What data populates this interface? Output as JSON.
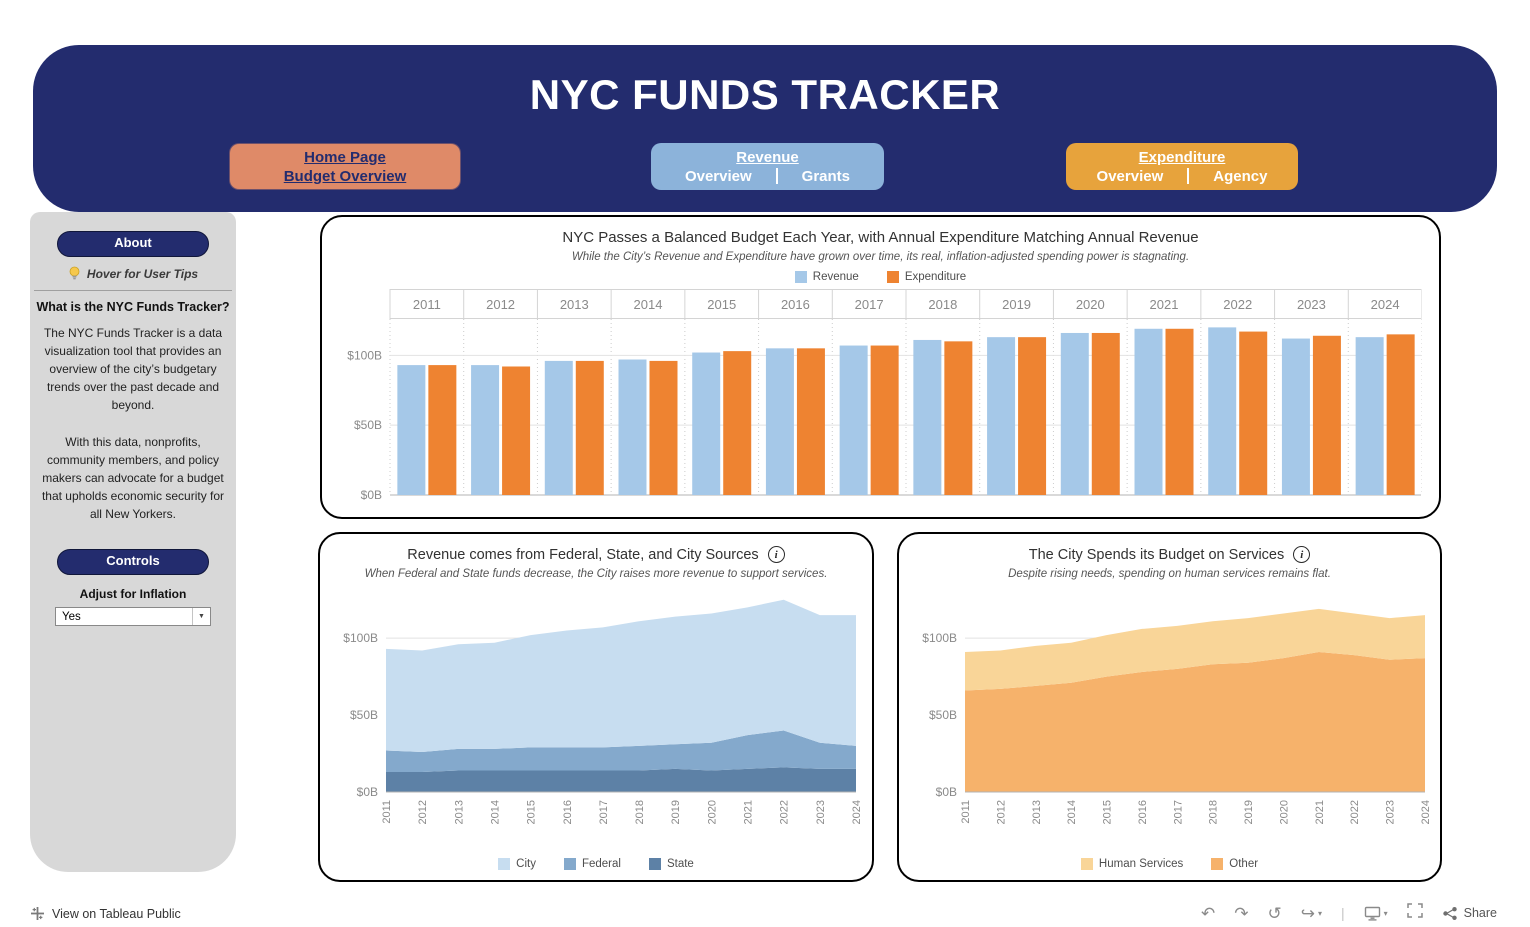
{
  "icons": {
    "info": "i",
    "caret_down": "▼",
    "caret_small": "▾",
    "undo": "↶",
    "redo": "↷",
    "reset": "↺",
    "share_arrow": "↪",
    "separator": "|"
  },
  "header": {
    "title": "NYC FUNDS TRACKER",
    "nav_home": {
      "title": "Home Page",
      "subtitle": "Budget Overview"
    },
    "nav_revenue": {
      "title": "Revenue",
      "left": "Overview",
      "right": "Grants"
    },
    "nav_expenditure": {
      "title": "Expenditure",
      "left": "Overview",
      "right": "Agency"
    }
  },
  "sidebar": {
    "about_label": "About",
    "tips_label": "Hover for User Tips",
    "heading": "What is the NYC Funds Tracker?",
    "para1": "The NYC Funds Tracker is a data visualization tool that provides an overview of the city’s budgetary trends over the past decade and beyond.",
    "para2": "With this data, nonprofits, community members, and policy makers can advocate for a budget that upholds economic security for all New Yorkers.",
    "controls_label": "Controls",
    "inflation_label": "Adjust for Inflation",
    "inflation_value": "Yes"
  },
  "footer": {
    "view_label": "View on Tableau Public",
    "share_label": "Share"
  },
  "colors": {
    "navy": "#232c6e",
    "home_button": "#df8a68",
    "revenue_button": "#8cb3da",
    "expenditure_button": "#e7a33c",
    "sidebar_bg": "#d8d8d8"
  },
  "chart_data": [
    {
      "type": "bar",
      "title": "NYC Passes a Balanced Budget Each Year, with Annual Expenditure Matching Annual Revenue",
      "subtitle": "While the City’s Revenue and Expenditure have grown over time, its real, inflation-adjusted spending power is stagnating.",
      "categories": [
        "2011",
        "2012",
        "2013",
        "2014",
        "2015",
        "2016",
        "2017",
        "2018",
        "2019",
        "2020",
        "2021",
        "2022",
        "2023",
        "2024"
      ],
      "series": [
        {
          "name": "Revenue",
          "color": "#a5c8e8",
          "values": [
            93,
            93,
            96,
            97,
            102,
            105,
            107,
            111,
            113,
            116,
            119,
            120,
            112,
            113
          ]
        },
        {
          "name": "Expenditure",
          "color": "#ee8331",
          "values": [
            93,
            92,
            96,
            96,
            103,
            105,
            107,
            110,
            113,
            116,
            119,
            117,
            114,
            115
          ]
        }
      ],
      "units": "billions USD",
      "yticks": [
        0,
        50,
        100
      ],
      "ylim": [
        0,
        126
      ],
      "grid": true,
      "legend_position": "top"
    },
    {
      "type": "area",
      "title": "Revenue comes from Federal, State, and City Sources",
      "subtitle": "When Federal and State funds decrease, the City raises more revenue to support services.",
      "x": [
        "2011",
        "2012",
        "2013",
        "2014",
        "2015",
        "2016",
        "2017",
        "2018",
        "2019",
        "2020",
        "2021",
        "2022",
        "2023",
        "2024"
      ],
      "series": [
        {
          "name": "State",
          "color": "#5d81a6",
          "values": [
            13,
            13,
            14,
            14,
            14,
            14,
            14,
            14,
            15,
            14,
            15,
            16,
            15,
            15
          ]
        },
        {
          "name": "Federal",
          "color": "#84a9cc",
          "values": [
            14,
            13,
            14,
            14,
            15,
            15,
            15,
            16,
            16,
            18,
            22,
            24,
            17,
            15
          ]
        },
        {
          "name": "City",
          "color": "#c7ddf0",
          "values": [
            66,
            66,
            68,
            69,
            73,
            76,
            78,
            81,
            83,
            84,
            83,
            85,
            83,
            85
          ]
        }
      ],
      "stack_order": "bottom-to-top",
      "legend": [
        "City",
        "Federal",
        "State"
      ],
      "units": "billions USD",
      "yticks": [
        0,
        50,
        100
      ],
      "ylim": [
        0,
        130
      ],
      "legend_position": "bottom"
    },
    {
      "type": "area",
      "title": "The City Spends its Budget on Services",
      "subtitle": "Despite rising needs, spending on human services remains flat.",
      "x": [
        "2011",
        "2012",
        "2013",
        "2014",
        "2015",
        "2016",
        "2017",
        "2018",
        "2019",
        "2020",
        "2021",
        "2022",
        "2023",
        "2024"
      ],
      "series": [
        {
          "name": "Other",
          "color": "#f6b26b",
          "values": [
            66,
            67,
            69,
            71,
            75,
            78,
            80,
            83,
            84,
            87,
            91,
            89,
            86,
            87
          ]
        },
        {
          "name": "Human Services",
          "color": "#f9d598",
          "values": [
            25,
            25,
            26,
            26,
            27,
            28,
            28,
            28,
            29,
            29,
            28,
            27,
            27,
            28
          ]
        }
      ],
      "stack_order": "bottom-to-top",
      "legend": [
        "Human Services",
        "Other"
      ],
      "units": "billions USD",
      "yticks": [
        0,
        50,
        100
      ],
      "ylim": [
        0,
        130
      ],
      "legend_position": "bottom"
    }
  ]
}
